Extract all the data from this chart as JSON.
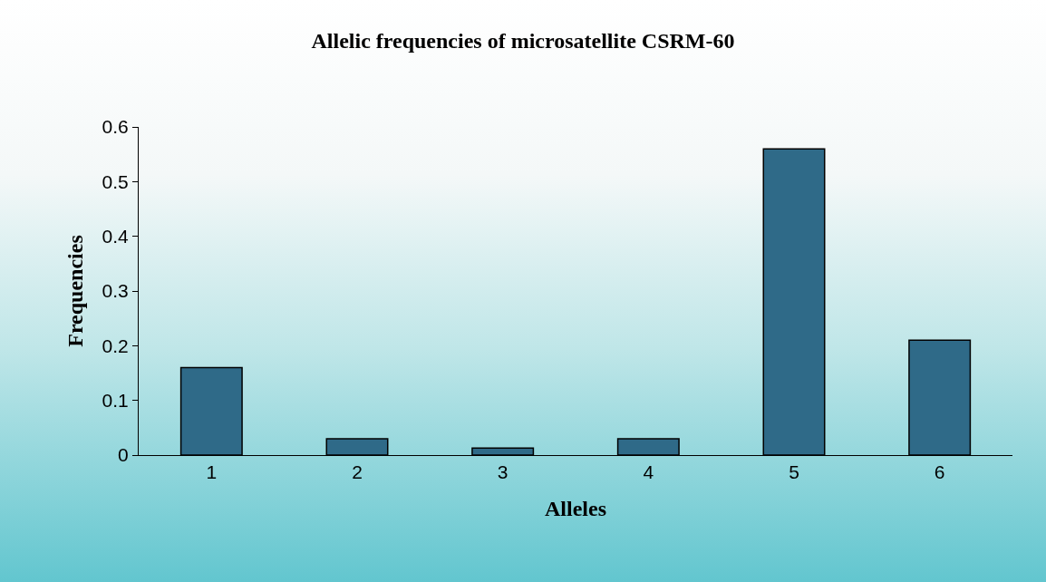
{
  "chart_data": {
    "type": "bar",
    "title": "Allelic frequencies of microsatellite CSRM-60",
    "xlabel": "Alleles",
    "ylabel": "Frequencies",
    "categories": [
      "1",
      "2",
      "3",
      "4",
      "5",
      "6"
    ],
    "values": [
      0.16,
      0.03,
      0.013,
      0.03,
      0.56,
      0.21
    ],
    "color": "#2f6a88",
    "ylim": [
      0,
      0.6
    ],
    "yticks": [
      0,
      0.1,
      0.2,
      0.3,
      0.4,
      0.5,
      0.6
    ],
    "grid": false,
    "legend": false
  }
}
